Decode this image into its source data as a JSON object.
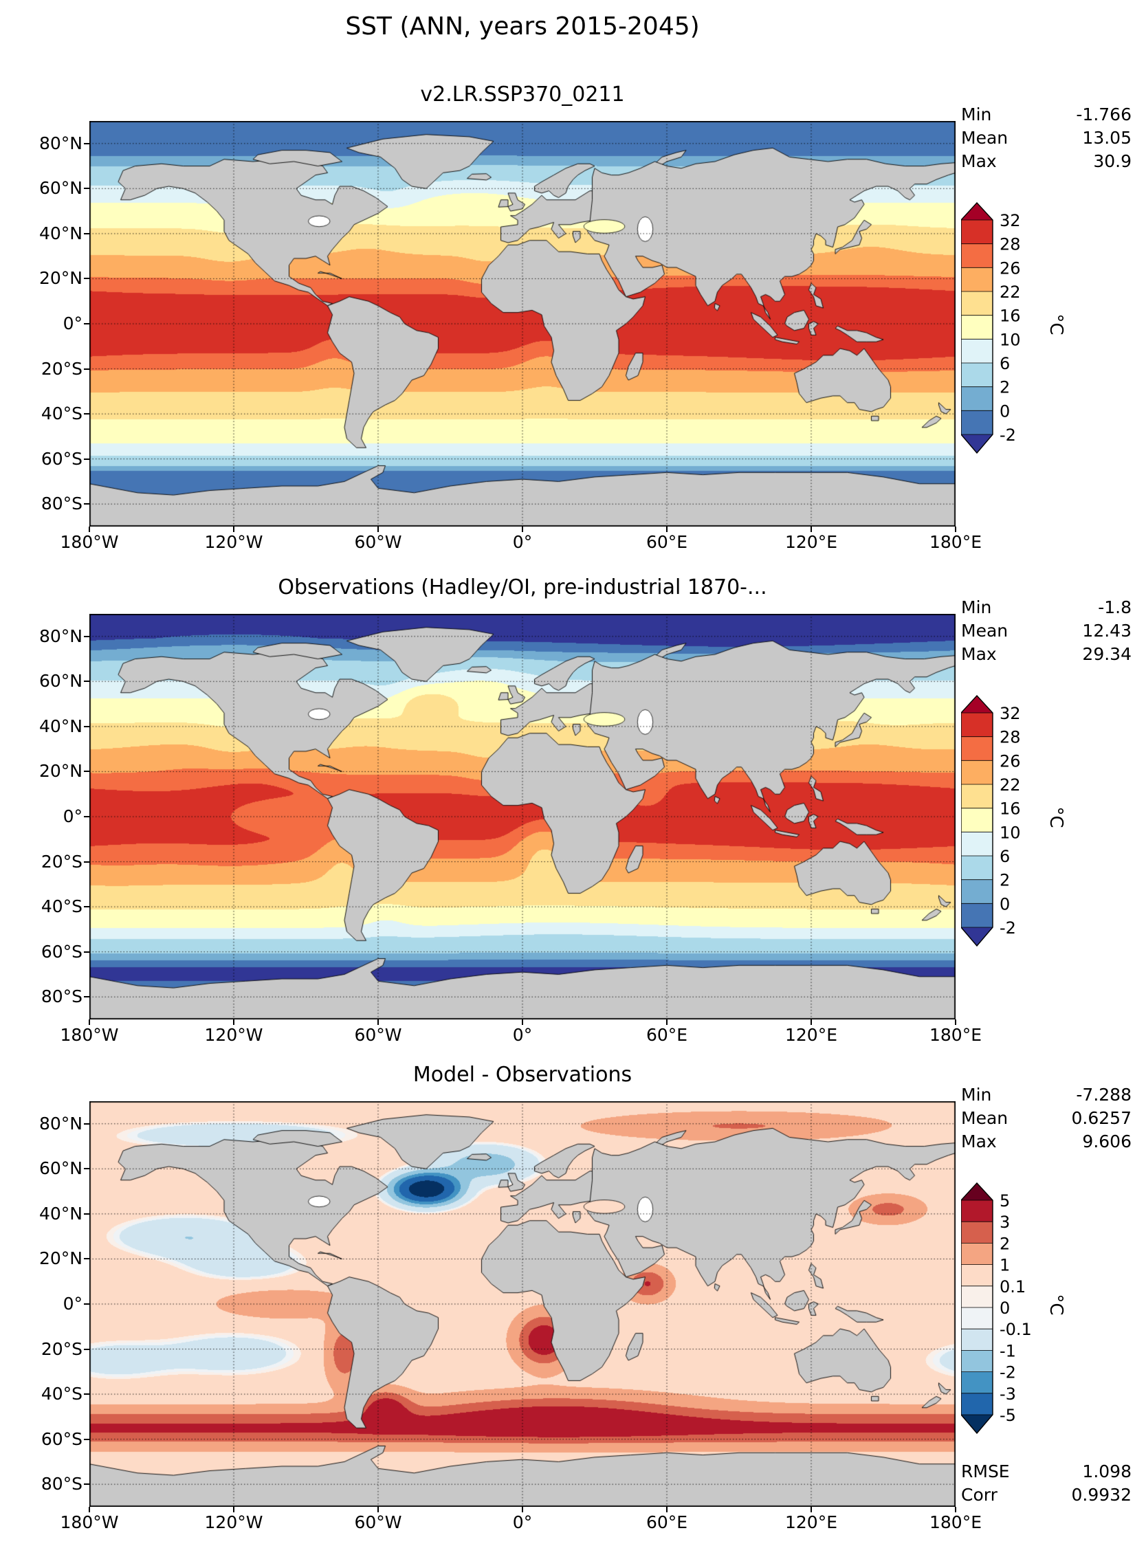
{
  "figure": {
    "title": "SST (ANN, years 2015-2045)"
  },
  "axes": {
    "x_tick_labels": [
      "180°W",
      "120°W",
      "60°W",
      "0°",
      "60°E",
      "120°E",
      "180°E"
    ],
    "y_tick_labels": [
      "80°N",
      "60°N",
      "40°N",
      "20°N",
      "0°",
      "20°S",
      "40°S",
      "60°S",
      "80°S"
    ]
  },
  "panels": [
    {
      "title": "v2.LR.SSP370_0211",
      "stats": [
        {
          "label": "Min",
          "value": "-1.766"
        },
        {
          "label": "Mean",
          "value": "13.05"
        },
        {
          "label": "Max",
          "value": "30.9"
        }
      ],
      "colorbar": {
        "unit": "°C",
        "tick_labels": [
          "32",
          "28",
          "26",
          "22",
          "16",
          "10",
          "6",
          "2",
          "0",
          "-2"
        ]
      }
    },
    {
      "title": "Observations (Hadley/OI, pre-industrial 1870-...",
      "stats": [
        {
          "label": "Min",
          "value": "-1.8"
        },
        {
          "label": "Mean",
          "value": "12.43"
        },
        {
          "label": "Max",
          "value": "29.34"
        }
      ],
      "colorbar": {
        "unit": "°C",
        "tick_labels": [
          "32",
          "28",
          "26",
          "22",
          "16",
          "10",
          "6",
          "2",
          "0",
          "-2"
        ]
      }
    },
    {
      "title": "Model - Observations",
      "stats": [
        {
          "label": "Min",
          "value": "-7.288"
        },
        {
          "label": "Mean",
          "value": "0.6257"
        },
        {
          "label": "Max",
          "value": "9.606"
        }
      ],
      "metrics": [
        {
          "label": "RMSE",
          "value": "1.098"
        },
        {
          "label": "Corr",
          "value": "0.9932"
        }
      ],
      "colorbar": {
        "unit": "°C",
        "tick_labels": [
          "5",
          "3",
          "2",
          "1",
          "0.1",
          "0",
          "-0.1",
          "-1",
          "-2",
          "-3",
          "-5"
        ]
      }
    }
  ],
  "chart_data": [
    {
      "type": "heatmap",
      "title": "v2.LR.SSP370_0211",
      "variable": "Sea surface temperature (SST)",
      "season": "ANN",
      "years": "2015-2045",
      "units": "°C",
      "projection": "global equirectangular, lon -180..180, lat -90..90",
      "stats": {
        "min": -1.766,
        "mean": 13.05,
        "max": 30.9
      },
      "contour_levels": [
        -2,
        0,
        2,
        6,
        10,
        16,
        22,
        26,
        28,
        32
      ],
      "palette": [
        "#313695",
        "#4575b4",
        "#74add1",
        "#abd9e9",
        "#e0f3f8",
        "#ffffbf",
        "#fee090",
        "#fdae61",
        "#f46d43",
        "#d73027",
        "#a50026"
      ],
      "colorbar_position": "right, extended arrows both ends, uniform band spacing",
      "grid": "dotted graticule every 20° latitude and 60° longitude",
      "land_color": "#c8c8c8"
    },
    {
      "type": "heatmap",
      "title": "Observations (Hadley/OI, pre-industrial 1870-...",
      "variable": "Sea surface temperature (SST)",
      "season": "ANN",
      "units": "°C",
      "projection": "global equirectangular, lon -180..180, lat -90..90",
      "stats": {
        "min": -1.8,
        "mean": 12.43,
        "max": 29.34
      },
      "contour_levels": [
        -2,
        0,
        2,
        6,
        10,
        16,
        22,
        26,
        28,
        32
      ],
      "palette": [
        "#313695",
        "#4575b4",
        "#74add1",
        "#abd9e9",
        "#e0f3f8",
        "#ffffbf",
        "#fee090",
        "#fdae61",
        "#f46d43",
        "#d73027",
        "#a50026"
      ],
      "colorbar_position": "right, extended arrows both ends, uniform band spacing",
      "grid": "dotted graticule every 20° latitude and 60° longitude",
      "land_color": "#c8c8c8"
    },
    {
      "type": "heatmap",
      "title": "Model - Observations",
      "variable": "SST bias (model minus observations)",
      "units": "°C",
      "projection": "global equirectangular, lon -180..180, lat -90..90",
      "stats": {
        "min": -7.288,
        "mean": 0.6257,
        "max": 9.606,
        "rmse": 1.098,
        "corr": 0.9932
      },
      "contour_levels": [
        -5,
        -3,
        -2,
        -1,
        -0.1,
        0,
        0.1,
        1,
        2,
        3,
        5
      ],
      "palette": [
        "#053061",
        "#2166ac",
        "#4393c3",
        "#92c5de",
        "#d1e5f0",
        "#eff3f6",
        "#f9f0ea",
        "#fddbc7",
        "#f4a582",
        "#d6604d",
        "#b2182b",
        "#67001f"
      ],
      "colorbar_position": "right, extended arrows both ends, uniform band spacing",
      "grid": "dotted graticule every 20° latitude and 60° longitude",
      "land_color": "#c8c8c8",
      "notable_features": "cold bias blob in subpolar North Atlantic, warm bias band across Southern Ocean and eastern boundary upwelling regions"
    }
  ]
}
